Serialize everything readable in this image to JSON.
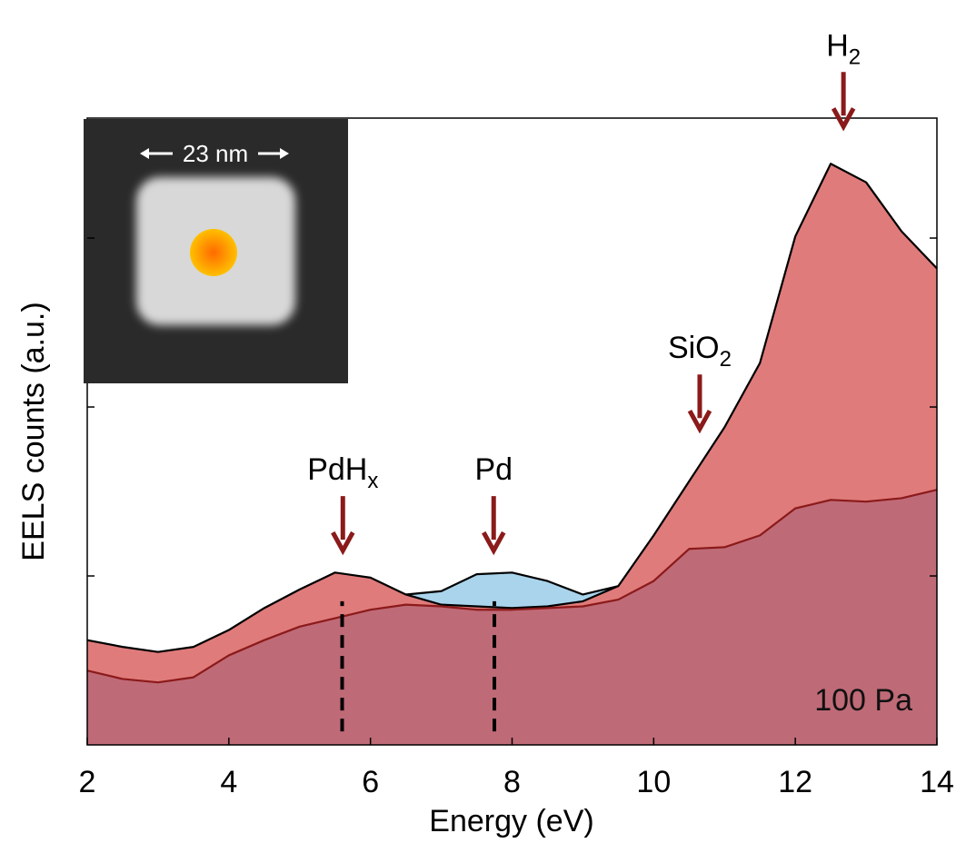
{
  "chart_data": {
    "type": "area",
    "x_label": "Energy (eV)",
    "y_label": "EELS counts (a.u.)",
    "xlim": [
      2,
      14
    ],
    "ylim": [
      0,
      3.71
    ],
    "xticks": [
      2,
      4,
      6,
      8,
      10,
      12,
      14
    ],
    "yticks": [
      1,
      2,
      3
    ],
    "x": [
      2,
      2.5,
      3,
      3.5,
      4,
      4.5,
      5,
      5.5,
      6,
      6.5,
      7,
      7.5,
      8,
      8.5,
      9,
      9.5,
      10,
      10.5,
      11,
      11.5,
      12,
      12.5,
      13,
      13.5,
      14
    ],
    "series": [
      {
        "color": "#a9d4ec",
        "line_color": "#000000",
        "values": [
          null,
          null,
          null,
          null,
          null,
          null,
          null,
          null,
          null,
          0.89,
          0.91,
          1.01,
          1.02,
          0.97,
          0.89,
          0.94,
          null,
          null,
          null,
          null,
          null,
          null,
          null,
          null,
          null
        ]
      },
      {
        "color": "#e07b7b",
        "line_color": "#000000",
        "values": [
          0.62,
          0.58,
          0.55,
          0.58,
          0.68,
          0.81,
          0.92,
          1.02,
          0.99,
          0.89,
          0.83,
          0.82,
          0.81,
          0.82,
          0.85,
          0.94,
          1.24,
          1.56,
          1.88,
          2.26,
          3.01,
          3.44,
          3.33,
          3.04,
          2.82
        ]
      },
      {
        "color": "#bf6a77",
        "line_color": "#8b1a1a",
        "values": [
          0.44,
          0.39,
          0.37,
          0.4,
          0.53,
          0.62,
          0.7,
          0.75,
          0.8,
          0.83,
          0.82,
          0.8,
          0.8,
          0.81,
          0.82,
          0.86,
          0.97,
          1.16,
          1.17,
          1.24,
          1.4,
          1.45,
          1.44,
          1.46,
          1.51
        ]
      }
    ],
    "annotations": [
      {
        "text": "PdH",
        "subscript": "x",
        "x": 5.61,
        "y": 1.15
      },
      {
        "text": "Pd",
        "x": 7.74,
        "y": 1.15
      },
      {
        "text": "SiO",
        "subscript": "2",
        "x": 10.65,
        "y": 1.87
      },
      {
        "text": "H",
        "subscript": "2",
        "x": 12.68,
        "y": 3.66
      }
    ],
    "vlines": [
      {
        "x": 5.6,
        "y": [
          0.08,
          0.85
        ]
      },
      {
        "x": 7.75,
        "y": [
          0.08,
          0.85
        ]
      }
    ],
    "condition_label": "100 Pa",
    "inset": {
      "scale_label": "23 nm"
    }
  }
}
